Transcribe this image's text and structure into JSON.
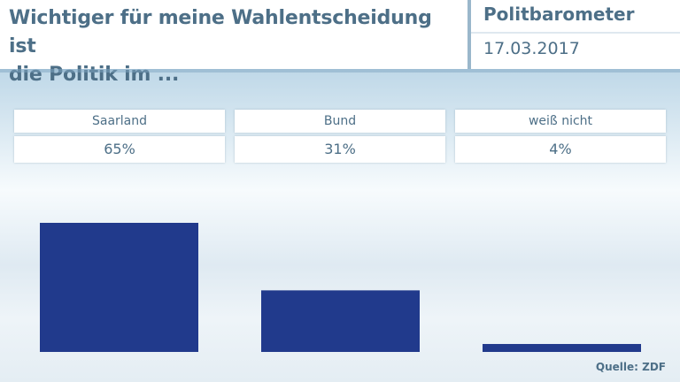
{
  "header": {
    "title": "Wichtiger für meine Wahlentscheidung ist\ndie Politik im ...",
    "brand": "Politbarometer",
    "date": "17.03.2017"
  },
  "chart_data": {
    "type": "bar",
    "categories": [
      "Saarland",
      "Bund",
      "weiß nicht"
    ],
    "values": [
      65,
      31,
      4
    ],
    "value_labels": [
      "65%",
      "31%",
      "4%"
    ],
    "ylim": [
      0,
      65
    ],
    "grid": false,
    "bar_color": "#213a8c"
  },
  "source": "Quelle: ZDF"
}
